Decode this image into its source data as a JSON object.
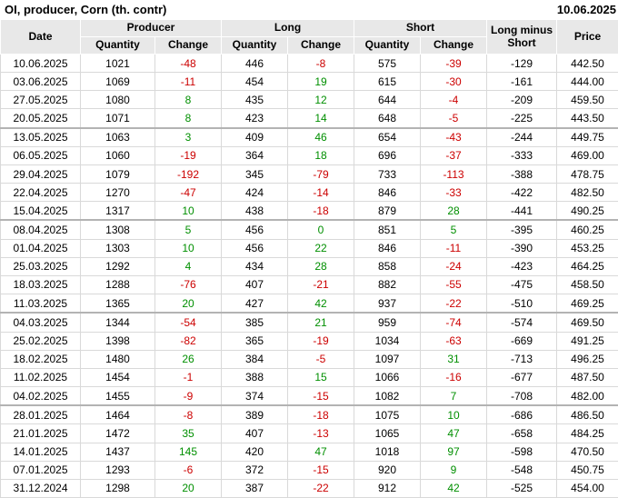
{
  "title": "OI, producer, Corn (th. contr)",
  "report_date": "10.06.2025",
  "colors": {
    "positive_change": "#008f00",
    "negative_change": "#cc0000",
    "header_background": "#e8e8e8",
    "grid_line": "#d9d9d9"
  },
  "table": {
    "header": {
      "date": "Date",
      "producer": "Producer",
      "long": "Long",
      "short": "Short",
      "long_minus_short": "Long minus Short",
      "price": "Price",
      "quantity": "Quantity",
      "change": "Change"
    },
    "columns": [
      "Date",
      "Producer Quantity",
      "Producer Change",
      "Long Quantity",
      "Long Change",
      "Short Quantity",
      "Short Change",
      "Long minus Short",
      "Price"
    ],
    "change_column_indexes": [
      2,
      4,
      6
    ],
    "group_end_row_indexes": [
      3,
      8,
      13,
      18
    ],
    "rows": [
      [
        "10.06.2025",
        "1021",
        "-48",
        "446",
        "-8",
        "575",
        "-39",
        "-129",
        "442.50"
      ],
      [
        "03.06.2025",
        "1069",
        "-11",
        "454",
        "19",
        "615",
        "-30",
        "-161",
        "444.00"
      ],
      [
        "27.05.2025",
        "1080",
        "8",
        "435",
        "12",
        "644",
        "-4",
        "-209",
        "459.50"
      ],
      [
        "20.05.2025",
        "1071",
        "8",
        "423",
        "14",
        "648",
        "-5",
        "-225",
        "443.50"
      ],
      [
        "13.05.2025",
        "1063",
        "3",
        "409",
        "46",
        "654",
        "-43",
        "-244",
        "449.75"
      ],
      [
        "06.05.2025",
        "1060",
        "-19",
        "364",
        "18",
        "696",
        "-37",
        "-333",
        "469.00"
      ],
      [
        "29.04.2025",
        "1079",
        "-192",
        "345",
        "-79",
        "733",
        "-113",
        "-388",
        "478.75"
      ],
      [
        "22.04.2025",
        "1270",
        "-47",
        "424",
        "-14",
        "846",
        "-33",
        "-422",
        "482.50"
      ],
      [
        "15.04.2025",
        "1317",
        "10",
        "438",
        "-18",
        "879",
        "28",
        "-441",
        "490.25"
      ],
      [
        "08.04.2025",
        "1308",
        "5",
        "456",
        "0",
        "851",
        "5",
        "-395",
        "460.25"
      ],
      [
        "01.04.2025",
        "1303",
        "10",
        "456",
        "22",
        "846",
        "-11",
        "-390",
        "453.25"
      ],
      [
        "25.03.2025",
        "1292",
        "4",
        "434",
        "28",
        "858",
        "-24",
        "-423",
        "464.25"
      ],
      [
        "18.03.2025",
        "1288",
        "-76",
        "407",
        "-21",
        "882",
        "-55",
        "-475",
        "458.50"
      ],
      [
        "11.03.2025",
        "1365",
        "20",
        "427",
        "42",
        "937",
        "-22",
        "-510",
        "469.25"
      ],
      [
        "04.03.2025",
        "1344",
        "-54",
        "385",
        "21",
        "959",
        "-74",
        "-574",
        "469.50"
      ],
      [
        "25.02.2025",
        "1398",
        "-82",
        "365",
        "-19",
        "1034",
        "-63",
        "-669",
        "491.25"
      ],
      [
        "18.02.2025",
        "1480",
        "26",
        "384",
        "-5",
        "1097",
        "31",
        "-713",
        "496.25"
      ],
      [
        "11.02.2025",
        "1454",
        "-1",
        "388",
        "15",
        "1066",
        "-16",
        "-677",
        "487.50"
      ],
      [
        "04.02.2025",
        "1455",
        "-9",
        "374",
        "-15",
        "1082",
        "7",
        "-708",
        "482.00"
      ],
      [
        "28.01.2025",
        "1464",
        "-8",
        "389",
        "-18",
        "1075",
        "10",
        "-686",
        "486.50"
      ],
      [
        "21.01.2025",
        "1472",
        "35",
        "407",
        "-13",
        "1065",
        "47",
        "-658",
        "484.25"
      ],
      [
        "14.01.2025",
        "1437",
        "145",
        "420",
        "47",
        "1018",
        "97",
        "-598",
        "470.50"
      ],
      [
        "07.01.2025",
        "1293",
        "-6",
        "372",
        "-15",
        "920",
        "9",
        "-548",
        "450.75"
      ],
      [
        "31.12.2024",
        "1298",
        "20",
        "387",
        "-22",
        "912",
        "42",
        "-525",
        "454.00"
      ]
    ]
  }
}
